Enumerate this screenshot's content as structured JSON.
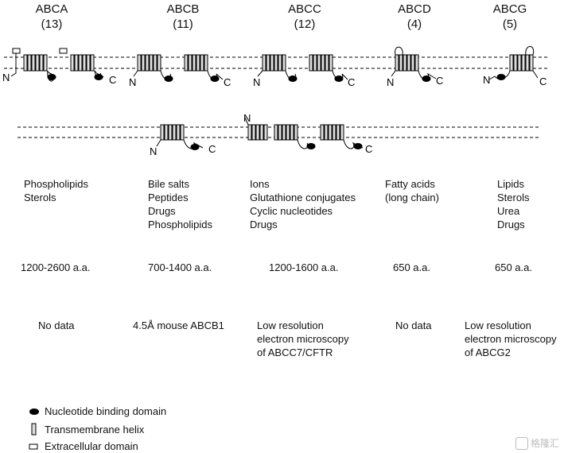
{
  "families": [
    {
      "name": "ABCA",
      "count": "(13)",
      "substrates": [
        "Phospholipids",
        "Sterols"
      ],
      "length": "1200-2600 a.a.",
      "structure": [
        "No data"
      ]
    },
    {
      "name": "ABCB",
      "count": "(11)",
      "substrates": [
        "Bile salts",
        "Peptides",
        "Drugs",
        "Phospholipids"
      ],
      "length": "700-1400 a.a.",
      "structure": [
        "4.5Å mouse ABCB1"
      ]
    },
    {
      "name": "ABCC",
      "count": "(12)",
      "substrates": [
        "Ions",
        "Glutathione conjugates",
        "Cyclic nucleotides",
        "Drugs"
      ],
      "length": "1200-1600 a.a.",
      "structure": [
        "Low resolution",
        "electron microscopy",
        "of ABCC7/CFTR"
      ]
    },
    {
      "name": "ABCD",
      "count": "(4)",
      "substrates": [
        "Fatty acids",
        "(long chain)"
      ],
      "length": "650 a.a.",
      "structure": [
        "No data"
      ]
    },
    {
      "name": "ABCG",
      "count": "(5)",
      "substrates": [
        "Lipids",
        "Sterols",
        "Urea",
        "Drugs"
      ],
      "length": "650 a.a.",
      "structure": [
        "Low resolution",
        "electron microscopy",
        "of ABCG2"
      ]
    }
  ],
  "topology_labels": {
    "n": "N",
    "c": "C"
  },
  "legend": [
    {
      "icon": "nucleotide-binding-icon",
      "label": "Nucleotide binding domain"
    },
    {
      "icon": "transmembrane-helix-icon",
      "label": "Transmembrane helix"
    },
    {
      "icon": "extracellular-domain-icon",
      "label": "Extracellular domain"
    }
  ],
  "watermark": {
    "text": "格隆汇"
  }
}
